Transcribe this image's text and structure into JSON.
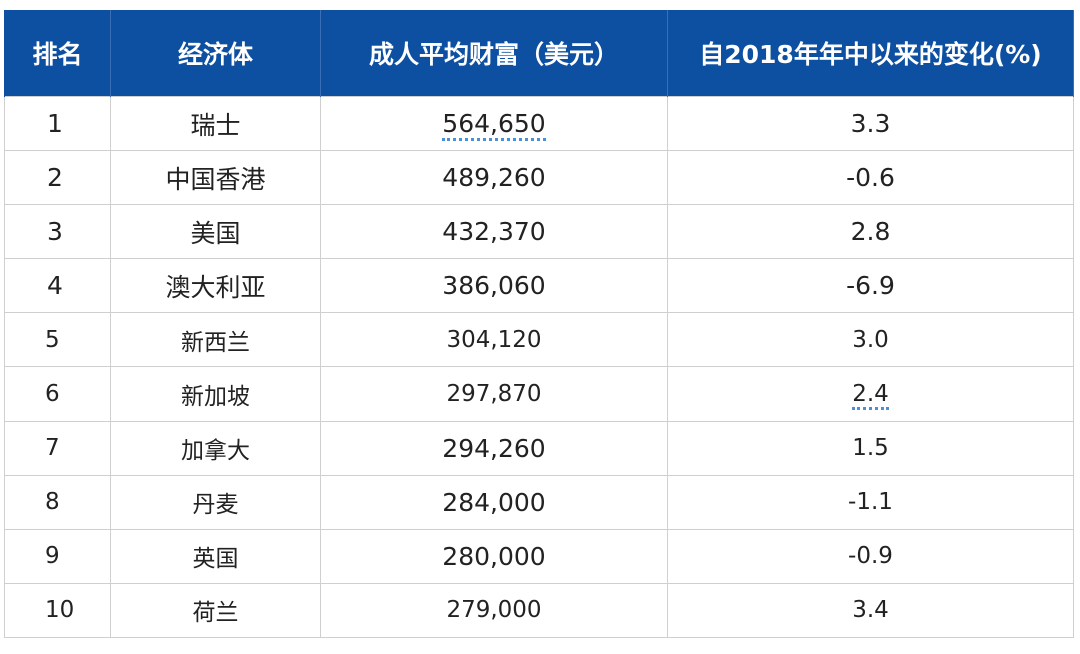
{
  "chart_data": {
    "type": "table",
    "columns": [
      "排名",
      "经济体",
      "成人平均财富（美元）",
      "自2018年年中以来的变化(%)"
    ],
    "rows": [
      {
        "rank": "1",
        "economy": "瑞士",
        "wealth": "564,650",
        "change": "3.3"
      },
      {
        "rank": "2",
        "economy": "中国香港",
        "wealth": "489,260",
        "change": "-0.6"
      },
      {
        "rank": "3",
        "economy": "美国",
        "wealth": "432,370",
        "change": "2.8"
      },
      {
        "rank": "4",
        "economy": "澳大利亚",
        "wealth": "386,060",
        "change": "-6.9"
      },
      {
        "rank": "5",
        "economy": "新西兰",
        "wealth": "304,120",
        "change": "3.0"
      },
      {
        "rank": "6",
        "economy": "新加坡",
        "wealth": "297,870",
        "change": "2.4"
      },
      {
        "rank": "7",
        "economy": "加拿大",
        "wealth": "294,260",
        "change": "1.5"
      },
      {
        "rank": "8",
        "economy": "丹麦",
        "wealth": "284,000",
        "change": "-1.1"
      },
      {
        "rank": "9",
        "economy": "英国",
        "wealth": "280,000",
        "change": "-0.9"
      },
      {
        "rank": "10",
        "economy": "荷兰",
        "wealth": "279,000",
        "change": "3.4"
      }
    ]
  },
  "colors": {
    "header_bg": "#0d4fa0",
    "header_text": "#ffffff",
    "grid_line": "#cfcfcf",
    "body_text": "#222222",
    "dotted_underline": "#4a90d9"
  }
}
